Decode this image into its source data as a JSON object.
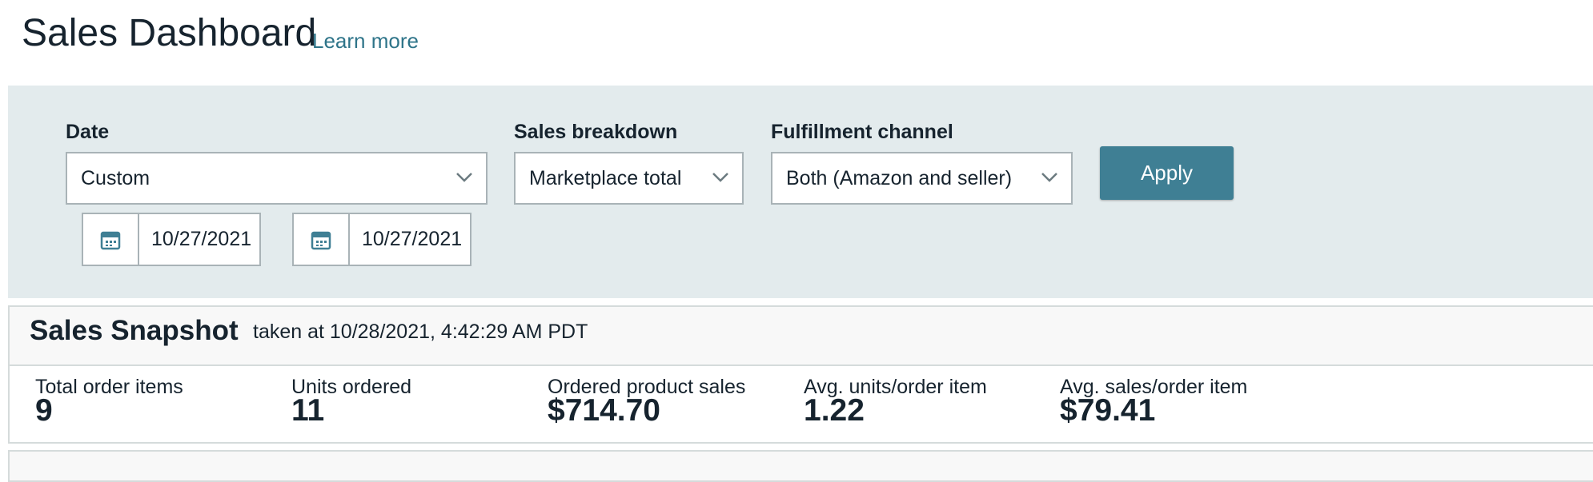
{
  "header": {
    "title": "Sales Dashboard",
    "link": "Learn more"
  },
  "filters": [
    {
      "label": "Date",
      "value": "Custom"
    },
    {
      "label": "Sales breakdown",
      "value": "Marketplace total"
    },
    {
      "label": "Fulfillment channel",
      "value": "Both (Amazon and seller)"
    }
  ],
  "date_range": {
    "start": "10/27/2021",
    "end": "10/27/2021"
  },
  "button": "Apply",
  "snapshot": {
    "title": "Sales Snapshot",
    "taken": "taken at 10/28/2021, 4:42:29 AM PDT",
    "metrics": [
      {
        "label": "Total order items",
        "value": "9"
      },
      {
        "label": "Units ordered",
        "value": "11"
      },
      {
        "label": "Ordered product sales",
        "value": "$714.70"
      },
      {
        "label": "Avg. units/order item",
        "value": "1.22"
      },
      {
        "label": "Avg. sales/order item",
        "value": "$79.41"
      }
    ]
  }
}
